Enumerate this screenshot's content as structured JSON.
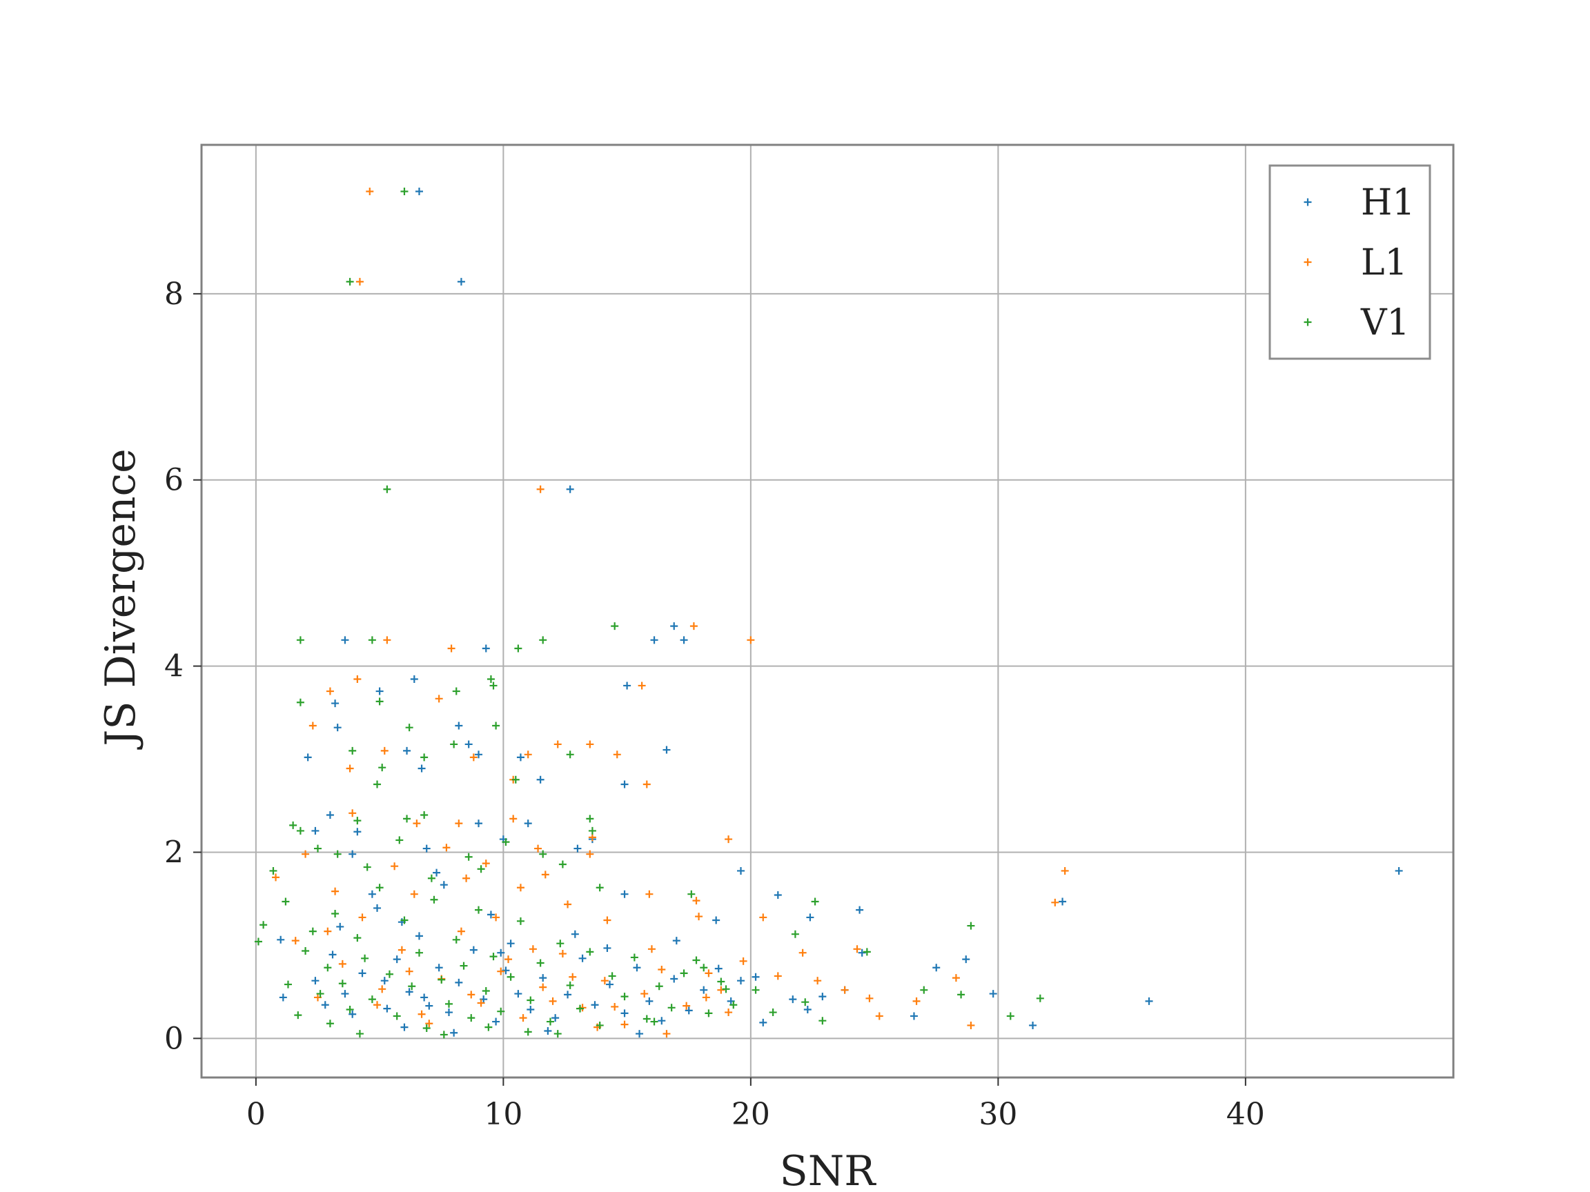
{
  "chart_data": {
    "type": "scatter",
    "xlabel": "SNR",
    "ylabel": "JS Divergence",
    "xlim": [
      -2.2,
      48.4
    ],
    "ylim": [
      -0.42,
      9.6
    ],
    "xticks": [
      0,
      10,
      20,
      30,
      40
    ],
    "yticks": [
      0,
      2,
      4,
      6,
      8
    ],
    "grid": true,
    "legend_position": "top-right",
    "marker": "+",
    "series": [
      {
        "name": "H1",
        "color": "#1f77b4",
        "points": [
          [
            6.6,
            9.1
          ],
          [
            8.3,
            8.13
          ],
          [
            12.7,
            5.9
          ],
          [
            9.3,
            4.19
          ],
          [
            3.6,
            4.28
          ],
          [
            16.1,
            4.28
          ],
          [
            16.9,
            4.43
          ],
          [
            17.3,
            4.28
          ],
          [
            6.4,
            3.86
          ],
          [
            5.0,
            3.73
          ],
          [
            3.2,
            3.6
          ],
          [
            3.3,
            3.34
          ],
          [
            8.2,
            3.36
          ],
          [
            8.6,
            3.16
          ],
          [
            10.7,
            3.02
          ],
          [
            6.1,
            3.09
          ],
          [
            2.1,
            3.02
          ],
          [
            6.7,
            2.9
          ],
          [
            9.0,
            3.05
          ],
          [
            16.6,
            3.1
          ],
          [
            11.5,
            2.78
          ],
          [
            14.9,
            2.73
          ],
          [
            15.0,
            3.79
          ],
          [
            13.0,
            2.04
          ],
          [
            13.6,
            2.14
          ],
          [
            11.0,
            2.31
          ],
          [
            10.0,
            2.14
          ],
          [
            9.0,
            2.31
          ],
          [
            3.0,
            2.4
          ],
          [
            4.1,
            2.22
          ],
          [
            2.4,
            2.23
          ],
          [
            3.9,
            1.98
          ],
          [
            6.9,
            2.04
          ],
          [
            7.3,
            1.78
          ],
          [
            14.9,
            1.55
          ],
          [
            19.6,
            1.8
          ],
          [
            21.1,
            1.54
          ],
          [
            22.4,
            1.3
          ],
          [
            24.4,
            1.38
          ],
          [
            24.5,
            0.92
          ],
          [
            26.6,
            0.24
          ],
          [
            27.5,
            0.76
          ],
          [
            28.7,
            0.85
          ],
          [
            29.8,
            0.48
          ],
          [
            31.4,
            0.14
          ],
          [
            36.1,
            0.4
          ],
          [
            32.6,
            1.47
          ],
          [
            46.2,
            1.8
          ],
          [
            20.2,
            0.66
          ],
          [
            20.5,
            0.17
          ],
          [
            21.7,
            0.42
          ],
          [
            22.3,
            0.31
          ],
          [
            22.9,
            0.45
          ],
          [
            23.8,
            0.52
          ],
          [
            1.0,
            1.06
          ],
          [
            1.1,
            0.44
          ],
          [
            2.4,
            0.62
          ],
          [
            3.1,
            0.9
          ],
          [
            3.4,
            1.2
          ],
          [
            3.9,
            0.26
          ],
          [
            4.3,
            0.7
          ],
          [
            4.9,
            1.4
          ],
          [
            5.3,
            0.32
          ],
          [
            5.7,
            0.85
          ],
          [
            6.2,
            0.5
          ],
          [
            6.6,
            1.1
          ],
          [
            7.0,
            0.35
          ],
          [
            7.4,
            0.76
          ],
          [
            7.8,
            0.28
          ],
          [
            8.2,
            0.6
          ],
          [
            8.8,
            0.95
          ],
          [
            9.2,
            0.42
          ],
          [
            9.7,
            0.18
          ],
          [
            10.1,
            0.73
          ],
          [
            10.6,
            0.48
          ],
          [
            11.1,
            0.31
          ],
          [
            11.6,
            0.65
          ],
          [
            12.1,
            0.22
          ],
          [
            12.6,
            0.47
          ],
          [
            13.2,
            0.86
          ],
          [
            13.7,
            0.36
          ],
          [
            14.3,
            0.58
          ],
          [
            14.9,
            0.27
          ],
          [
            15.4,
            0.76
          ],
          [
            15.9,
            0.4
          ],
          [
            16.4,
            0.19
          ],
          [
            16.9,
            0.64
          ],
          [
            17.5,
            0.3
          ],
          [
            18.1,
            0.52
          ],
          [
            18.7,
            0.75
          ],
          [
            19.2,
            0.4
          ],
          [
            4.7,
            1.55
          ],
          [
            5.9,
            1.25
          ],
          [
            7.6,
            1.65
          ],
          [
            9.5,
            1.33
          ],
          [
            10.3,
            1.02
          ],
          [
            12.9,
            1.12
          ],
          [
            14.2,
            0.97
          ],
          [
            3.6,
            0.48
          ],
          [
            2.8,
            0.36
          ],
          [
            6.0,
            0.12
          ],
          [
            8.0,
            0.06
          ],
          [
            11.8,
            0.08
          ],
          [
            15.5,
            0.05
          ],
          [
            17.0,
            1.05
          ],
          [
            18.6,
            1.27
          ],
          [
            19.6,
            0.62
          ],
          [
            5.2,
            0.62
          ],
          [
            6.8,
            0.44
          ],
          [
            9.9,
            0.92
          ]
        ]
      },
      {
        "name": "L1",
        "color": "#ff7f0e",
        "points": [
          [
            4.6,
            9.1
          ],
          [
            4.2,
            8.13
          ],
          [
            11.5,
            5.9
          ],
          [
            5.3,
            4.28
          ],
          [
            7.9,
            4.19
          ],
          [
            17.7,
            4.43
          ],
          [
            20.0,
            4.28
          ],
          [
            4.1,
            3.86
          ],
          [
            15.6,
            3.79
          ],
          [
            3.0,
            3.73
          ],
          [
            7.4,
            3.65
          ],
          [
            2.3,
            3.36
          ],
          [
            8.8,
            3.02
          ],
          [
            12.2,
            3.16
          ],
          [
            14.6,
            3.05
          ],
          [
            11.0,
            3.05
          ],
          [
            5.2,
            3.09
          ],
          [
            13.5,
            3.16
          ],
          [
            15.8,
            2.73
          ],
          [
            10.4,
            2.78
          ],
          [
            3.8,
            2.9
          ],
          [
            2.0,
            1.98
          ],
          [
            3.9,
            2.42
          ],
          [
            6.5,
            2.31
          ],
          [
            8.2,
            2.31
          ],
          [
            10.4,
            2.36
          ],
          [
            13.6,
            2.16
          ],
          [
            19.1,
            2.14
          ],
          [
            11.4,
            2.04
          ],
          [
            17.9,
            1.31
          ],
          [
            20.5,
            1.3
          ],
          [
            22.1,
            0.92
          ],
          [
            22.7,
            0.62
          ],
          [
            23.8,
            0.52
          ],
          [
            24.3,
            0.96
          ],
          [
            24.8,
            0.43
          ],
          [
            25.2,
            0.24
          ],
          [
            26.7,
            0.4
          ],
          [
            28.3,
            0.65
          ],
          [
            28.9,
            0.14
          ],
          [
            32.3,
            1.46
          ],
          [
            32.7,
            1.8
          ],
          [
            6.4,
            1.55
          ],
          [
            8.5,
            1.72
          ],
          [
            10.7,
            1.62
          ],
          [
            12.6,
            1.44
          ],
          [
            14.2,
            1.27
          ],
          [
            16.4,
            0.74
          ],
          [
            18.2,
            0.44
          ],
          [
            19.7,
            0.83
          ],
          [
            21.1,
            0.67
          ],
          [
            0.8,
            1.73
          ],
          [
            1.6,
            1.05
          ],
          [
            2.5,
            0.44
          ],
          [
            3.5,
            0.8
          ],
          [
            4.3,
            1.3
          ],
          [
            5.1,
            0.53
          ],
          [
            5.9,
            0.95
          ],
          [
            6.7,
            0.26
          ],
          [
            7.5,
            0.64
          ],
          [
            8.3,
            1.15
          ],
          [
            9.1,
            0.38
          ],
          [
            9.9,
            0.72
          ],
          [
            10.8,
            0.22
          ],
          [
            11.6,
            0.55
          ],
          [
            12.4,
            0.91
          ],
          [
            13.2,
            0.33
          ],
          [
            14.1,
            0.62
          ],
          [
            14.9,
            0.15
          ],
          [
            15.7,
            0.48
          ],
          [
            16.6,
            0.05
          ],
          [
            17.4,
            0.35
          ],
          [
            18.3,
            0.7
          ],
          [
            19.1,
            0.28
          ],
          [
            7.7,
            2.05
          ],
          [
            9.3,
            1.88
          ],
          [
            11.7,
            1.76
          ],
          [
            13.5,
            1.98
          ],
          [
            15.9,
            1.55
          ],
          [
            17.8,
            1.48
          ],
          [
            3.2,
            1.58
          ],
          [
            4.9,
            0.36
          ],
          [
            6.2,
            0.72
          ],
          [
            7.0,
            0.16
          ],
          [
            8.7,
            0.47
          ],
          [
            10.2,
            0.85
          ],
          [
            12.0,
            0.4
          ],
          [
            13.8,
            0.12
          ],
          [
            16.0,
            0.96
          ],
          [
            18.8,
            0.52
          ],
          [
            2.9,
            1.15
          ],
          [
            5.6,
            1.85
          ],
          [
            9.7,
            1.3
          ],
          [
            11.2,
            0.96
          ],
          [
            12.8,
            0.66
          ],
          [
            14.5,
            0.34
          ]
        ]
      },
      {
        "name": "V1",
        "color": "#2ca02c",
        "points": [
          [
            6.0,
            9.1
          ],
          [
            3.8,
            8.13
          ],
          [
            5.3,
            5.9
          ],
          [
            1.8,
            4.28
          ],
          [
            4.7,
            4.28
          ],
          [
            11.6,
            4.28
          ],
          [
            10.6,
            4.19
          ],
          [
            14.5,
            4.43
          ],
          [
            9.5,
            3.86
          ],
          [
            9.6,
            3.79
          ],
          [
            8.1,
            3.73
          ],
          [
            1.8,
            3.61
          ],
          [
            5.0,
            3.62
          ],
          [
            6.2,
            3.34
          ],
          [
            9.7,
            3.36
          ],
          [
            3.9,
            3.09
          ],
          [
            8.0,
            3.16
          ],
          [
            12.7,
            3.05
          ],
          [
            6.8,
            3.02
          ],
          [
            5.1,
            2.91
          ],
          [
            4.9,
            2.73
          ],
          [
            10.5,
            2.78
          ],
          [
            4.1,
            2.34
          ],
          [
            6.1,
            2.36
          ],
          [
            6.8,
            2.4
          ],
          [
            1.5,
            2.29
          ],
          [
            1.8,
            2.23
          ],
          [
            2.5,
            2.04
          ],
          [
            13.5,
            2.36
          ],
          [
            13.6,
            2.23
          ],
          [
            11.6,
            1.98
          ],
          [
            9.1,
            1.82
          ],
          [
            21.8,
            1.12
          ],
          [
            22.6,
            1.47
          ],
          [
            22.2,
            0.39
          ],
          [
            22.9,
            0.19
          ],
          [
            24.7,
            0.93
          ],
          [
            27.0,
            0.52
          ],
          [
            28.5,
            0.47
          ],
          [
            28.9,
            1.21
          ],
          [
            30.5,
            0.24
          ],
          [
            31.7,
            0.43
          ],
          [
            20.2,
            0.52
          ],
          [
            20.9,
            0.28
          ],
          [
            0.1,
            1.04
          ],
          [
            0.3,
            1.22
          ],
          [
            0.7,
            1.8
          ],
          [
            1.2,
            1.47
          ],
          [
            1.3,
            0.58
          ],
          [
            1.7,
            0.25
          ],
          [
            2.0,
            0.94
          ],
          [
            2.3,
            1.15
          ],
          [
            2.6,
            0.48
          ],
          [
            2.9,
            0.76
          ],
          [
            3.2,
            1.34
          ],
          [
            3.5,
            0.59
          ],
          [
            3.8,
            0.31
          ],
          [
            4.1,
            1.08
          ],
          [
            4.4,
            0.86
          ],
          [
            4.7,
            0.42
          ],
          [
            5.0,
            1.62
          ],
          [
            5.4,
            0.69
          ],
          [
            5.7,
            0.24
          ],
          [
            6.0,
            1.27
          ],
          [
            6.3,
            0.56
          ],
          [
            6.6,
            0.92
          ],
          [
            6.9,
            0.11
          ],
          [
            7.2,
            1.49
          ],
          [
            7.5,
            0.63
          ],
          [
            7.8,
            0.37
          ],
          [
            8.1,
            1.06
          ],
          [
            8.4,
            0.78
          ],
          [
            8.7,
            0.22
          ],
          [
            9.0,
            1.38
          ],
          [
            9.3,
            0.51
          ],
          [
            9.6,
            0.88
          ],
          [
            9.9,
            0.29
          ],
          [
            10.3,
            0.66
          ],
          [
            10.7,
            1.26
          ],
          [
            11.1,
            0.41
          ],
          [
            11.5,
            0.81
          ],
          [
            11.9,
            0.18
          ],
          [
            12.3,
            1.02
          ],
          [
            12.7,
            0.57
          ],
          [
            13.1,
            0.32
          ],
          [
            13.5,
            0.93
          ],
          [
            13.9,
            0.14
          ],
          [
            14.4,
            0.67
          ],
          [
            14.9,
            0.45
          ],
          [
            15.3,
            0.87
          ],
          [
            15.8,
            0.21
          ],
          [
            16.3,
            0.56
          ],
          [
            16.8,
            0.33
          ],
          [
            17.3,
            0.7
          ],
          [
            17.8,
            0.84
          ],
          [
            18.3,
            0.27
          ],
          [
            18.8,
            0.61
          ],
          [
            19.3,
            0.36
          ],
          [
            3.3,
            1.98
          ],
          [
            4.5,
            1.84
          ],
          [
            5.8,
            2.13
          ],
          [
            7.1,
            1.72
          ],
          [
            8.6,
            1.95
          ],
          [
            10.1,
            2.11
          ],
          [
            12.4,
            1.87
          ],
          [
            13.9,
            1.62
          ],
          [
            3.0,
            0.16
          ],
          [
            4.2,
            0.05
          ],
          [
            7.6,
            0.04
          ],
          [
            9.4,
            0.12
          ],
          [
            11.0,
            0.07
          ],
          [
            12.2,
            0.05
          ],
          [
            16.1,
            0.18
          ],
          [
            17.6,
            1.55
          ],
          [
            18.1,
            0.76
          ],
          [
            19.0,
            0.53
          ]
        ]
      }
    ]
  }
}
